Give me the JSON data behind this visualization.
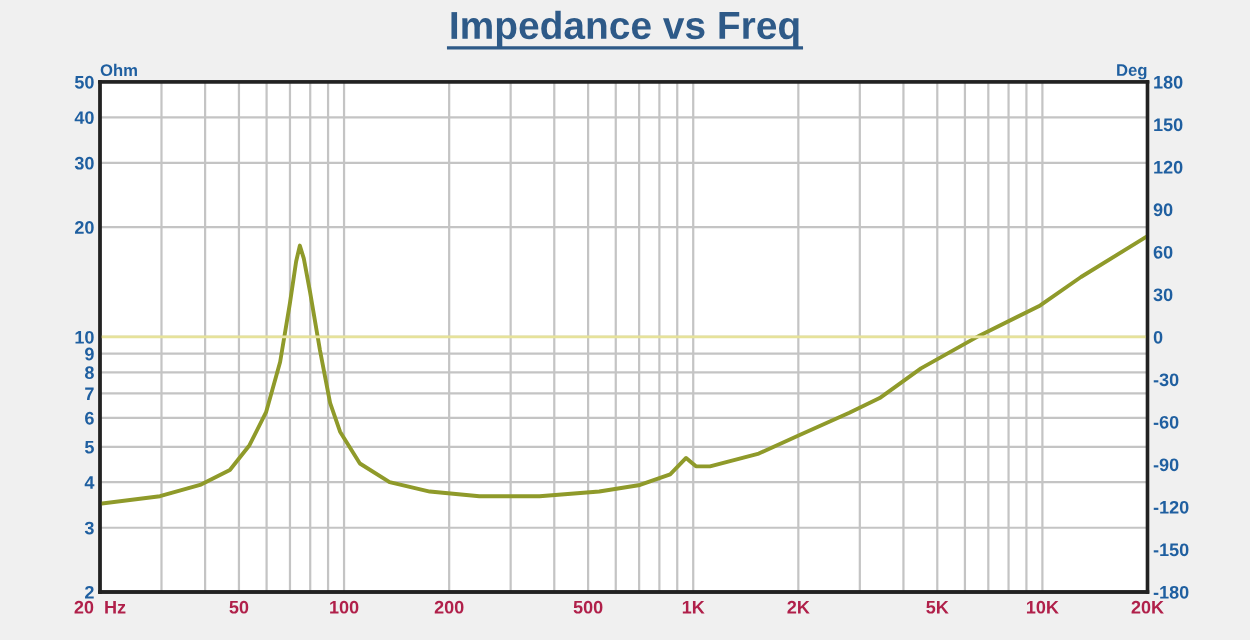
{
  "chart_data": {
    "type": "line",
    "title": "Impedance vs Freq",
    "ylabel": "Ohm",
    "y2label": "Deg",
    "x": [
      20,
      29.7,
      38.7,
      47.1,
      53.6,
      59.8,
      65.6,
      70.0,
      72.9,
      74.7,
      76.7,
      79.9,
      85.3,
      91.2,
      97.4,
      111,
      135,
      176,
      244,
      363,
      538,
      704,
      859,
      954,
      1018,
      1117,
      1541,
      2010,
      2800,
      3420,
      4490,
      6620,
      9860,
      12900,
      20000
    ],
    "series": [
      {
        "color": "#8f9a2a",
        "values": [
          3.49,
          3.66,
          3.93,
          4.32,
          5.05,
          6.22,
          8.54,
          12.4,
          16.1,
          17.8,
          16.4,
          13.3,
          9.2,
          6.6,
          5.5,
          4.5,
          4.0,
          3.77,
          3.66,
          3.66,
          3.77,
          3.93,
          4.2,
          4.66,
          4.42,
          4.42,
          4.79,
          5.38,
          6.2,
          6.8,
          8.2,
          10.1,
          12.2,
          14.6,
          18.9
        ]
      }
    ],
    "log": "xy",
    "xlim": [
      20,
      20000
    ],
    "ylim": [
      2,
      50
    ],
    "y2lim": [
      -180,
      180
    ],
    "xticks": [
      {
        "value": 20,
        "label": "20  Hz"
      },
      {
        "value": 30,
        "label": null
      },
      {
        "value": 40,
        "label": null
      },
      50,
      {
        "value": 60,
        "label": null
      },
      {
        "value": 70,
        "label": null
      },
      {
        "value": 80,
        "label": null
      },
      {
        "value": 90,
        "label": null
      },
      100,
      200,
      {
        "value": 300,
        "label": null
      },
      {
        "value": 400,
        "label": null
      },
      500,
      {
        "value": 600,
        "label": null
      },
      {
        "value": 700,
        "label": null
      },
      {
        "value": 800,
        "label": null
      },
      {
        "value": 900,
        "label": null
      },
      {
        "value": 1000,
        "label": "1K"
      },
      {
        "value": 2000,
        "label": "2K"
      },
      {
        "value": 3000,
        "label": null
      },
      {
        "value": 4000,
        "label": null
      },
      {
        "value": 5000,
        "label": "5K"
      },
      {
        "value": 6000,
        "label": null
      },
      {
        "value": 7000,
        "label": null
      },
      {
        "value": 8000,
        "label": null
      },
      {
        "value": 9000,
        "label": null
      },
      {
        "value": 10000,
        "label": "10K"
      },
      {
        "value": 20000,
        "label": "20K"
      }
    ],
    "yticks": [
      2,
      3,
      4,
      5,
      6,
      7,
      8,
      9,
      10,
      20,
      30,
      40,
      50
    ],
    "y2ticks": [
      -180,
      -150,
      -120,
      -90,
      -60,
      -30,
      0,
      30,
      60,
      90,
      120,
      150,
      180
    ],
    "ref_lines": [
      {
        "axis": "y2",
        "value": 0,
        "color": "#e6e29a"
      }
    ],
    "grid": true,
    "line_style": "solid"
  }
}
